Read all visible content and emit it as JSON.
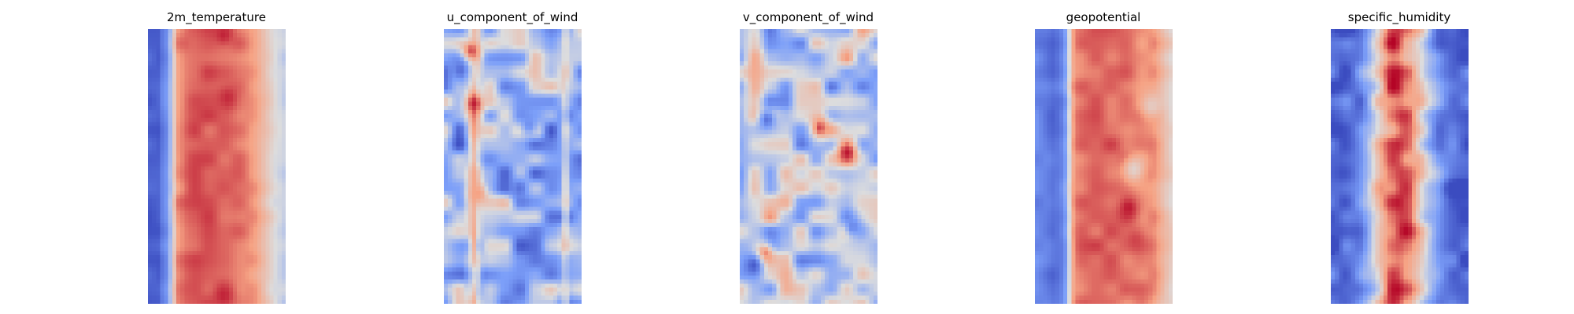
{
  "chart_data": [
    {
      "type": "heatmap",
      "title": "2m_temperature",
      "colormap": "coolwarm",
      "axes_visible": false,
      "grid": false,
      "field": {
        "left_band": {
          "value": 0.06
        },
        "column_profile": [
          0.08,
          0.1,
          0.22,
          0.78,
          0.85,
          0.87,
          0.87,
          0.86,
          0.85,
          0.83,
          0.8,
          0.74,
          0.62,
          0.5,
          0.42
        ],
        "row_variation": 0.05,
        "hot_spots": [
          {
            "x": 0.55,
            "y": 0.02,
            "value": 0.95
          },
          {
            "x": 0.58,
            "y": 0.25,
            "value": 0.94
          },
          {
            "x": 0.55,
            "y": 0.97,
            "value": 0.95
          }
        ]
      }
    },
    {
      "type": "heatmap",
      "title": "u_component_of_wind",
      "colormap": "coolwarm",
      "axes_visible": false,
      "grid": false,
      "field": {
        "base": 0.33,
        "noise": 0.16,
        "stripes": [
          {
            "x": 0.22,
            "width": 0.05,
            "value": 0.78
          },
          {
            "x": 0.88,
            "width": 0.03,
            "value": 0.7
          }
        ],
        "hot_spots": [
          {
            "x": 0.22,
            "y": 0.27,
            "value": 0.96
          },
          {
            "x": 0.2,
            "y": 0.08,
            "value": 0.9
          },
          {
            "x": 0.25,
            "y": 0.6,
            "value": 0.75
          }
        ],
        "cold_spots": [
          {
            "x": 0.12,
            "y": 0.15,
            "value": 0.1
          },
          {
            "x": 0.55,
            "y": 0.58,
            "value": 0.12
          },
          {
            "x": 0.62,
            "y": 0.35,
            "value": 0.2
          }
        ]
      }
    },
    {
      "type": "heatmap",
      "title": "v_component_of_wind",
      "colormap": "coolwarm",
      "axes_visible": false,
      "grid": false,
      "field": {
        "base": 0.45,
        "noise": 0.17,
        "hot_spots": [
          {
            "x": 0.78,
            "y": 0.45,
            "value": 0.97
          },
          {
            "x": 0.58,
            "y": 0.36,
            "value": 0.9
          },
          {
            "x": 0.18,
            "y": 0.82,
            "value": 0.85
          }
        ],
        "cold_spots": [
          {
            "x": 0.1,
            "y": 0.86,
            "value": 0.05
          },
          {
            "x": 0.2,
            "y": 0.33,
            "value": 0.12
          },
          {
            "x": 0.82,
            "y": 0.72,
            "value": 0.18
          }
        ]
      }
    },
    {
      "type": "heatmap",
      "title": "geopotential",
      "colormap": "coolwarm",
      "axes_visible": false,
      "grid": false,
      "field": {
        "column_profile": [
          0.18,
          0.15,
          0.1,
          0.2,
          0.8,
          0.84,
          0.86,
          0.86,
          0.85,
          0.84,
          0.82,
          0.8,
          0.78,
          0.66,
          0.55
        ],
        "row_variation": 0.06,
        "hot_spots": [
          {
            "x": 0.68,
            "y": 0.65,
            "value": 0.97
          },
          {
            "x": 0.73,
            "y": 0.77,
            "value": 0.9
          }
        ],
        "cool_patches": [
          {
            "x": 0.72,
            "y": 0.51,
            "value": 0.55
          },
          {
            "x": 0.85,
            "y": 0.28,
            "value": 0.58
          }
        ]
      }
    },
    {
      "type": "heatmap",
      "title": "specific_humidity",
      "colormap": "coolwarm",
      "axes_visible": false,
      "grid": false,
      "field": {
        "column_profile": [
          0.04,
          0.05,
          0.1,
          0.2,
          0.38,
          0.62,
          0.83,
          0.9,
          0.83,
          0.62,
          0.38,
          0.2,
          0.1,
          0.05,
          0.04
        ],
        "row_variation": 0.1,
        "noise": 0.12
      }
    }
  ]
}
